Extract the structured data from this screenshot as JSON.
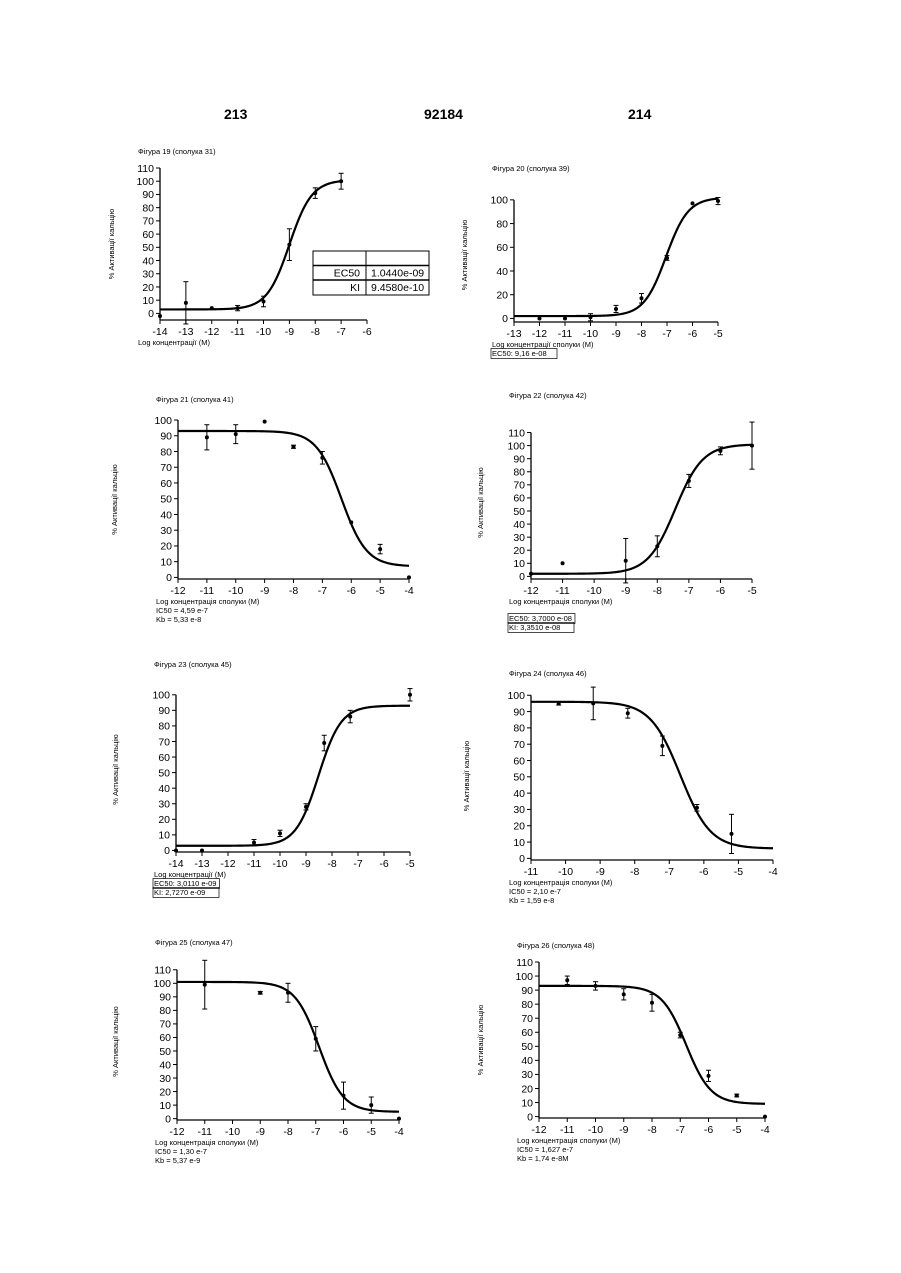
{
  "header": {
    "left": "213",
    "center": "92184",
    "right": "214"
  },
  "chart_data": [
    {
      "type": "scatter",
      "title": "Фігура 19 (сполука 31)",
      "xlabel": "Log концентрації (M)",
      "ylabel": "% Активації кальцію",
      "xlim": [
        -14,
        -6
      ],
      "ylim": [
        -5,
        110
      ],
      "xticks": [
        -14,
        -13,
        -12,
        -11,
        -10,
        -9,
        -8,
        -7,
        -6
      ],
      "yticks": [
        0,
        10,
        20,
        30,
        40,
        50,
        60,
        70,
        80,
        90,
        100,
        110
      ],
      "curve": {
        "bottom": 3,
        "top": 101,
        "logec50": -9,
        "hill": 1,
        "from": -14,
        "to": -7
      },
      "points": [
        {
          "x": -14,
          "y": -2,
          "err": 0
        },
        {
          "x": -13,
          "y": 8,
          "err": 16
        },
        {
          "x": -12,
          "y": 4,
          "err": 0
        },
        {
          "x": -11,
          "y": 4,
          "err": 2
        },
        {
          "x": -10,
          "y": 9,
          "err": 4
        },
        {
          "x": -9,
          "y": 52,
          "err": 12
        },
        {
          "x": -8,
          "y": 91,
          "err": 4
        },
        {
          "x": -7,
          "y": 100,
          "err": 6
        }
      ],
      "box": {
        "rows": [
          [
            "",
            ""
          ],
          [
            "EC50",
            "1.0440e-09"
          ],
          [
            "KI",
            "9.4580e-10"
          ]
        ]
      }
    },
    {
      "type": "scatter",
      "title": "Фігура 20 (сполука 39)",
      "xlabel": "Log концентрації сполуки (M)",
      "ylabel": "% Активації кальцію",
      "xlim": [
        -13,
        -5
      ],
      "ylim": [
        -3,
        110
      ],
      "xticks": [
        -13,
        -12,
        -11,
        -10,
        -9,
        -8,
        -7,
        -6,
        -5
      ],
      "yticks": [
        0,
        20,
        40,
        60,
        80,
        100
      ],
      "curve": {
        "bottom": 2,
        "top": 102,
        "logec50": -7.04,
        "hill": 1,
        "from": -13,
        "to": -5
      },
      "points": [
        {
          "x": -12,
          "y": 0,
          "err": 0
        },
        {
          "x": -11,
          "y": 0,
          "err": 0
        },
        {
          "x": -10,
          "y": 1,
          "err": 3
        },
        {
          "x": -9,
          "y": 8,
          "err": 3
        },
        {
          "x": -8,
          "y": 17,
          "err": 4
        },
        {
          "x": -7,
          "y": 51,
          "err": 2
        },
        {
          "x": -6,
          "y": 97,
          "err": 0
        },
        {
          "x": -5,
          "y": 99,
          "err": 3
        }
      ],
      "notes": [
        "EC50: 9,16 e-08"
      ]
    },
    {
      "type": "scatter",
      "title": "Фігура 21 (сполука 41)",
      "xlabel": "Log концентрація сполуки (M)",
      "ylabel": "% Активації кальцію",
      "xlim": [
        -12,
        -4
      ],
      "ylim": [
        -1,
        100
      ],
      "xticks": [
        -12,
        -11,
        -10,
        -9,
        -8,
        -7,
        -6,
        -5,
        -4
      ],
      "yticks": [
        0,
        10,
        20,
        30,
        40,
        50,
        60,
        70,
        80,
        90,
        100
      ],
      "curve": {
        "bottom": 93,
        "top": 7,
        "logec50": -6.34,
        "hill": 1,
        "from": -12,
        "to": -4
      },
      "points": [
        {
          "x": -11,
          "y": 89,
          "err": 8
        },
        {
          "x": -10,
          "y": 91,
          "err": 6
        },
        {
          "x": -9,
          "y": 99,
          "err": 0
        },
        {
          "x": -8,
          "y": 83,
          "err": 1
        },
        {
          "x": -7,
          "y": 76,
          "err": 4
        },
        {
          "x": -6,
          "y": 35,
          "err": 0
        },
        {
          "x": -5,
          "y": 18,
          "err": 3
        },
        {
          "x": -4,
          "y": 0,
          "err": 0
        }
      ],
      "notes": [
        "IC50 = 4,59 e-7",
        "Kb = 5,33 e-8"
      ]
    },
    {
      "type": "scatter",
      "title": "Фігура 22 (сполука 42)",
      "xlabel": "Log концентрація сполуки (M)",
      "ylabel": "% Активації кальцію",
      "xlim": [
        -12,
        -5
      ],
      "ylim": [
        -2,
        115
      ],
      "xticks": [
        -12,
        -11,
        -10,
        -9,
        -8,
        -7,
        -6,
        -5
      ],
      "yticks": [
        0,
        10,
        20,
        30,
        40,
        50,
        60,
        70,
        80,
        90,
        100,
        110
      ],
      "curve": {
        "bottom": 2,
        "top": 101,
        "logec50": -7.43,
        "hill": 1,
        "from": -12,
        "to": -5
      },
      "points": [
        {
          "x": -12,
          "y": 2,
          "err": 0
        },
        {
          "x": -11,
          "y": 10,
          "err": 0
        },
        {
          "x": -9,
          "y": 12,
          "err": 17
        },
        {
          "x": -8,
          "y": 23,
          "err": 8
        },
        {
          "x": -7,
          "y": 73,
          "err": 5
        },
        {
          "x": -6,
          "y": 96,
          "err": 3
        },
        {
          "x": -5,
          "y": 100,
          "err": 18
        }
      ],
      "notes": [
        "EC50: 3,7000 e-08",
        "KI:     3,3510 e-08"
      ]
    },
    {
      "type": "scatter",
      "title": "Фігура 23 (сполука 45)",
      "xlabel": "Log концентрації (M)",
      "ylabel": "% Активації кальцію",
      "xlim": [
        -14,
        -5
      ],
      "ylim": [
        -1,
        105
      ],
      "xticks": [
        -14,
        -13,
        -12,
        -11,
        -10,
        -9,
        -8,
        -7,
        -6,
        -5
      ],
      "yticks": [
        0,
        10,
        20,
        30,
        40,
        50,
        60,
        70,
        80,
        90,
        100
      ],
      "curve": {
        "bottom": 3,
        "top": 93,
        "logec50": -8.52,
        "hill": 1,
        "from": -14,
        "to": -5
      },
      "points": [
        {
          "x": -14,
          "y": 0,
          "err": 0
        },
        {
          "x": -13,
          "y": 0,
          "err": 0
        },
        {
          "x": -11,
          "y": 5,
          "err": 2
        },
        {
          "x": -10,
          "y": 11,
          "err": 2
        },
        {
          "x": -9,
          "y": 28,
          "err": 2
        },
        {
          "x": -8.3,
          "y": 69,
          "err": 5
        },
        {
          "x": -7.3,
          "y": 86,
          "err": 4
        },
        {
          "x": -5,
          "y": 100,
          "err": 4
        }
      ],
      "notes": [
        "EC50: 3,0110 e-09",
        "KI:     2,7270 e-09"
      ]
    },
    {
      "type": "scatter",
      "title": "Фігура 24 (сполука 46)",
      "xlabel": "Log концентрація сполуки (M)",
      "ylabel": "% Активації кальцію",
      "xlim": [
        -11,
        -4
      ],
      "ylim": [
        -1,
        102
      ],
      "xticks": [
        -11,
        -10,
        -9,
        -8,
        -7,
        -6,
        -5,
        -4
      ],
      "yticks": [
        0,
        10,
        20,
        30,
        40,
        50,
        60,
        70,
        80,
        90,
        100
      ],
      "curve": {
        "bottom": 96,
        "top": 6,
        "logec50": -6.68,
        "hill": 1,
        "from": -11,
        "to": -4
      },
      "points": [
        {
          "x": -10.2,
          "y": 95,
          "err": 1
        },
        {
          "x": -9.2,
          "y": 95,
          "err": 10
        },
        {
          "x": -8.2,
          "y": 89,
          "err": 3
        },
        {
          "x": -7.2,
          "y": 69,
          "err": 6
        },
        {
          "x": -6.2,
          "y": 31,
          "err": 2
        },
        {
          "x": -5.2,
          "y": 15,
          "err": 12
        }
      ],
      "notes": [
        "IC50 = 2,10 e-7",
        "Kb = 1,59 e-8"
      ]
    },
    {
      "type": "scatter",
      "title": "Фігура 25 (сполука 47)",
      "xlabel": "Log концентрація сполуки (M)",
      "ylabel": "% Активації кальцію",
      "xlim": [
        -12,
        -4
      ],
      "ylim": [
        -1,
        115
      ],
      "xticks": [
        -12,
        -11,
        -10,
        -9,
        -8,
        -7,
        -6,
        -5,
        -4
      ],
      "yticks": [
        0,
        10,
        20,
        30,
        40,
        50,
        60,
        70,
        80,
        90,
        100,
        110
      ],
      "curve": {
        "bottom": 101,
        "top": 5,
        "logec50": -6.88,
        "hill": 1,
        "from": -12,
        "to": -4
      },
      "points": [
        {
          "x": -11,
          "y": 99,
          "err": 18
        },
        {
          "x": -9,
          "y": 93,
          "err": 1
        },
        {
          "x": -8,
          "y": 93,
          "err": 7
        },
        {
          "x": -7,
          "y": 59,
          "err": 9
        },
        {
          "x": -6,
          "y": 17,
          "err": 10
        },
        {
          "x": -5,
          "y": 10,
          "err": 6
        },
        {
          "x": -4,
          "y": 0,
          "err": 0
        }
      ],
      "notes": [
        "IC50 = 1,30 e-7",
        "Kb = 5,37 e-9"
      ]
    },
    {
      "type": "scatter",
      "title": "Фігура 26 (сполука 48)",
      "xlabel": "Log концентрація сполуки (M)",
      "ylabel": "% Активації кальцію",
      "xlim": [
        -12,
        -4
      ],
      "ylim": [
        -1,
        110
      ],
      "xticks": [
        -12,
        -11,
        -10,
        -9,
        -8,
        -7,
        -6,
        -5,
        -4
      ],
      "yticks": [
        0,
        10,
        20,
        30,
        40,
        50,
        60,
        70,
        80,
        90,
        100,
        110
      ],
      "curve": {
        "bottom": 93,
        "top": 9,
        "logec50": -6.79,
        "hill": 1,
        "from": -12,
        "to": -4
      },
      "points": [
        {
          "x": -11,
          "y": 97,
          "err": 3
        },
        {
          "x": -10,
          "y": 93,
          "err": 3
        },
        {
          "x": -9,
          "y": 87,
          "err": 4
        },
        {
          "x": -8,
          "y": 81,
          "err": 6
        },
        {
          "x": -7,
          "y": 58,
          "err": 2
        },
        {
          "x": -6,
          "y": 29,
          "err": 4
        },
        {
          "x": -5,
          "y": 15,
          "err": 1
        },
        {
          "x": -4,
          "y": 0,
          "err": 0
        }
      ],
      "notes": [
        "IC50 = 1,627 e-7",
        "Kb = 1,74 e-8M"
      ]
    }
  ]
}
